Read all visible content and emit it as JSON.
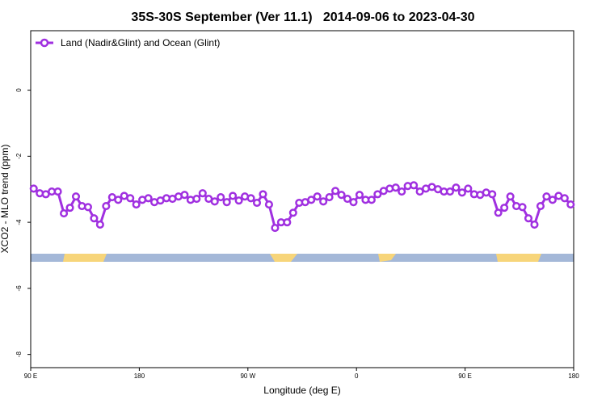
{
  "chart_data": {
    "type": "line",
    "title": "35S-30S September (Ver 11.1)   2014-09-06 to 2023-04-30",
    "x_label": "Longitude (deg E)",
    "y_label": "XCO2 - MLO trend (ppm)",
    "legend": "top-left",
    "x": [
      92.5,
      97.5,
      102.5,
      107.5,
      112.5,
      117.5,
      122.5,
      127.5,
      132.5,
      137.5,
      142.5,
      147.5,
      152.5,
      157.5,
      162.5,
      167.5,
      172.5,
      177.5,
      182.5,
      187.5,
      192.5,
      197.5,
      202.5,
      207.5,
      212.5,
      217.5,
      222.5,
      227.5,
      232.5,
      237.5,
      242.5,
      247.5,
      252.5,
      257.5,
      262.5,
      267.5,
      272.5,
      277.5,
      282.5,
      287.5,
      292.5,
      297.5,
      302.5,
      307.5,
      312.5,
      317.5,
      322.5,
      327.5,
      332.5,
      337.5,
      342.5,
      347.5,
      352.5,
      357.5,
      362.5,
      367.5,
      372.5,
      377.5,
      382.5,
      387.5,
      392.5,
      397.5,
      402.5,
      407.5,
      412.5,
      417.5,
      422.5,
      427.5,
      432.5,
      437.5,
      442.5,
      447.5,
      452.5,
      457.5,
      462.5,
      467.5,
      472.5,
      477.5,
      482.5,
      487.5,
      492.5,
      497.5,
      502.5,
      507.5,
      512.5,
      517.5,
      522.5,
      527.5,
      532.5,
      537.5
    ],
    "series": [
      {
        "name": "Land (Nadir&Glint) and Ocean (Glint)",
        "color": "#a030e0",
        "values": [
          -2.98,
          -3.12,
          -3.15,
          -3.07,
          -3.07,
          -3.73,
          -3.56,
          -3.22,
          -3.51,
          -3.54,
          -3.88,
          -4.07,
          -3.51,
          -3.24,
          -3.32,
          -3.2,
          -3.27,
          -3.46,
          -3.32,
          -3.27,
          -3.39,
          -3.34,
          -3.27,
          -3.29,
          -3.22,
          -3.17,
          -3.32,
          -3.29,
          -3.12,
          -3.29,
          -3.37,
          -3.24,
          -3.39,
          -3.2,
          -3.34,
          -3.22,
          -3.27,
          -3.41,
          -3.15,
          -3.46,
          -4.17,
          -4.0,
          -4.0,
          -3.71,
          -3.41,
          -3.39,
          -3.32,
          -3.22,
          -3.37,
          -3.24,
          -3.05,
          -3.17,
          -3.29,
          -3.39,
          -3.17,
          -3.32,
          -3.32,
          -3.15,
          -3.05,
          -2.98,
          -2.95,
          -3.07,
          -2.9,
          -2.88,
          -3.07,
          -2.98,
          -2.93,
          -3.0,
          -3.07,
          -3.07,
          -2.95,
          -3.1,
          -2.98,
          -3.15,
          -3.17,
          -3.1,
          -3.15,
          -3.71,
          -3.56,
          -3.22,
          -3.51,
          -3.54,
          -3.88,
          -4.07,
          -3.51,
          -3.22,
          -3.32,
          -3.2,
          -3.27,
          -3.46
        ]
      }
    ],
    "xlim": [
      90,
      540
    ],
    "xticks": [
      {
        "value": 90,
        "label": "90 E"
      },
      180,
      {
        "value": 270,
        "label": "90 W"
      },
      {
        "value": 360,
        "label": "0"
      },
      {
        "value": 450,
        "label": "90 E"
      },
      {
        "value": 540,
        "label": "180"
      }
    ],
    "ylim": [
      -8.4,
      1.8
    ],
    "yticks": [
      0,
      -2,
      -4,
      -6,
      -8
    ]
  }
}
